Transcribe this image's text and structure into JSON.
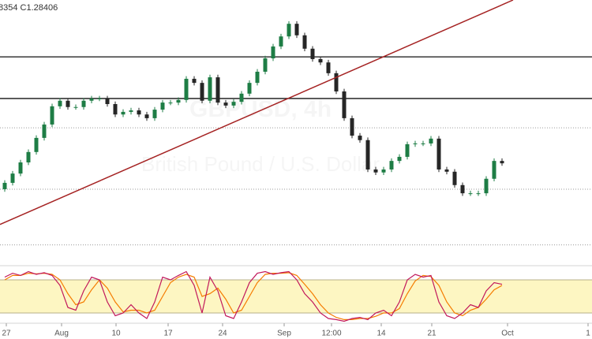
{
  "chart_data": {
    "type": "candlestick",
    "readout": "8354 C1.28406",
    "watermark": [
      "GBPUSD, 4h",
      "British Pound / U.S. Dollar"
    ],
    "xlim": [
      -0.6,
      74.4
    ],
    "ylim": [
      1.258,
      1.328
    ],
    "xticks": [
      {
        "value": 0.2,
        "label": "27"
      },
      {
        "value": 7.2,
        "label": "Aug"
      },
      {
        "value": 14.1,
        "label": "10"
      },
      {
        "value": 20.7,
        "label": "17"
      },
      {
        "value": 27.6,
        "label": "24"
      },
      {
        "value": 35.4,
        "label": "Sep"
      },
      {
        "value": 41.4,
        "label": "12:00"
      },
      {
        "value": 47.7,
        "label": "14"
      },
      {
        "value": 54.1,
        "label": "21"
      },
      {
        "value": 63.7,
        "label": "Oct"
      },
      {
        "value": 73.9,
        "label": "1"
      }
    ],
    "up_color": "#1e7d45",
    "down_color": "#262626",
    "open": [
      1.2771,
      1.2788,
      1.2813,
      1.2843,
      1.2871,
      1.2909,
      1.2945,
      1.2994,
      1.3009,
      1.2992,
      1.2992,
      1.3009,
      1.3015,
      1.3015,
      1.3,
      1.2972,
      1.2979,
      1.2983,
      1.2972,
      1.2962,
      1.2985,
      1.3004,
      1.3004,
      1.3011,
      1.3068,
      1.3057,
      1.3009,
      1.3072,
      1.3004,
      1.2996,
      1.3006,
      1.3028,
      1.3057,
      1.3087,
      1.3123,
      1.3155,
      1.3182,
      1.3216,
      1.3185,
      1.3149,
      1.3121,
      1.3112,
      1.3083,
      1.3034,
      1.2962,
      1.2915,
      1.2903,
      1.2824,
      1.2816,
      1.2824,
      1.2847,
      1.2858,
      1.2892,
      1.2894,
      1.2894,
      1.2907,
      1.2824,
      1.2818,
      1.2782,
      1.276,
      1.276,
      1.276,
      1.2799,
      1.2847
    ],
    "high": [
      1.2795,
      1.282,
      1.285,
      1.2878,
      1.2916,
      1.2952,
      1.3001,
      1.3016,
      1.3016,
      1.2999,
      1.3016,
      1.3022,
      1.3022,
      1.3022,
      1.3007,
      1.2986,
      1.299,
      1.299,
      1.2979,
      1.2992,
      1.3011,
      1.3011,
      1.3018,
      1.3075,
      1.3075,
      1.3064,
      1.3079,
      1.3079,
      1.3011,
      1.3013,
      1.3035,
      1.3064,
      1.3094,
      1.313,
      1.3162,
      1.3189,
      1.3223,
      1.3223,
      1.3192,
      1.3156,
      1.3128,
      1.3119,
      1.309,
      1.3041,
      1.2969,
      1.2922,
      1.291,
      1.2831,
      1.2831,
      1.2854,
      1.2865,
      1.2899,
      1.2901,
      1.2901,
      1.2914,
      1.2914,
      1.2831,
      1.2825,
      1.2789,
      1.2767,
      1.2767,
      1.2806,
      1.2854,
      1.2854
    ],
    "low": [
      1.2764,
      1.2781,
      1.2806,
      1.2836,
      1.2864,
      1.2902,
      1.2938,
      1.2987,
      1.2985,
      1.2985,
      1.2985,
      1.3002,
      1.3008,
      1.2993,
      1.2965,
      1.2965,
      1.2972,
      1.2965,
      1.2955,
      1.2955,
      1.2978,
      1.2997,
      1.2997,
      1.3004,
      1.305,
      1.3002,
      1.3002,
      1.2997,
      1.2989,
      1.2989,
      1.2999,
      1.3021,
      1.305,
      1.308,
      1.3116,
      1.3148,
      1.3175,
      1.3178,
      1.3142,
      1.3114,
      1.3105,
      1.3076,
      1.3027,
      1.2955,
      1.2908,
      1.2896,
      1.2817,
      1.2809,
      1.2809,
      1.2817,
      1.284,
      1.2851,
      1.2885,
      1.2887,
      1.2887,
      1.2817,
      1.2811,
      1.2775,
      1.2753,
      1.2753,
      1.2753,
      1.2753,
      1.2792,
      1.2834
    ],
    "close": [
      1.2788,
      1.2813,
      1.2843,
      1.2871,
      1.2909,
      1.2945,
      1.2994,
      1.3009,
      1.2992,
      1.2992,
      1.3009,
      1.3015,
      1.3015,
      1.3,
      1.2972,
      1.2979,
      1.2983,
      1.2972,
      1.2962,
      1.2985,
      1.3004,
      1.3004,
      1.3011,
      1.3068,
      1.3057,
      1.3009,
      1.3072,
      1.3004,
      1.2996,
      1.3006,
      1.3028,
      1.3057,
      1.3087,
      1.3123,
      1.3155,
      1.3182,
      1.3216,
      1.3185,
      1.3149,
      1.3121,
      1.3112,
      1.3083,
      1.3034,
      1.2962,
      1.2915,
      1.2903,
      1.2824,
      1.2816,
      1.2824,
      1.2847,
      1.2858,
      1.2892,
      1.2894,
      1.2894,
      1.2907,
      1.2824,
      1.2818,
      1.2782,
      1.276,
      1.276,
      1.276,
      1.2799,
      1.2847,
      1.28406
    ],
    "levels": [
      1.3127,
      1.3015
    ],
    "level_color": "#111111",
    "dotted_levels": [
      1.2936,
      1.2771,
      1.2621
    ],
    "dotted_color": "#9a9a9a",
    "trendline": {
      "x": [
        -0.6,
        64.4
      ],
      "price": [
        1.2676,
        1.328
      ],
      "color": "#a52222"
    },
    "stochastic": {
      "ylim": [
        0,
        100
      ],
      "band": [
        20,
        80
      ],
      "band_color": "#fdf6c2",
      "series": [
        {
          "color": "#c2185b",
          "values": [
            85,
            92,
            88,
            95,
            90,
            93,
            88,
            70,
            30,
            25,
            60,
            85,
            80,
            40,
            15,
            20,
            35,
            20,
            10,
            40,
            85,
            80,
            88,
            95,
            70,
            20,
            85,
            60,
            15,
            10,
            40,
            75,
            92,
            95,
            90,
            93,
            95,
            80,
            55,
            40,
            20,
            10,
            8,
            5,
            10,
            12,
            8,
            20,
            25,
            15,
            40,
            80,
            90,
            85,
            88,
            40,
            15,
            10,
            20,
            35,
            30,
            60,
            75,
            72
          ]
        },
        {
          "color": "#f57c00",
          "values": [
            80,
            88,
            88,
            92,
            91,
            92,
            90,
            80,
            55,
            35,
            40,
            62,
            80,
            65,
            40,
            22,
            25,
            25,
            20,
            25,
            50,
            75,
            85,
            90,
            85,
            50,
            55,
            65,
            45,
            20,
            25,
            50,
            75,
            90,
            92,
            92,
            93,
            88,
            72,
            55,
            35,
            20,
            12,
            8,
            8,
            10,
            10,
            14,
            20,
            20,
            28,
            55,
            78,
            88,
            86,
            70,
            40,
            20,
            15,
            25,
            30,
            45,
            62,
            70
          ]
        }
      ]
    }
  }
}
